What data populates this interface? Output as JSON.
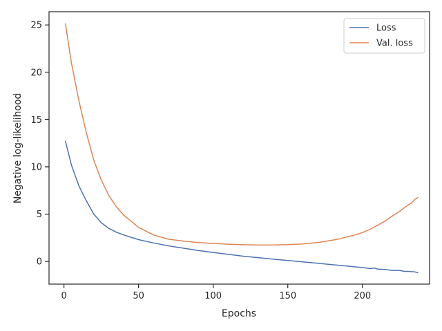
{
  "chart_data": {
    "type": "line",
    "xlabel": "Epochs",
    "ylabel": "Negative log-likelihood",
    "xlim": [
      -10,
      245
    ],
    "ylim": [
      -2.4,
      26.4
    ],
    "xticks": [
      0,
      50,
      100,
      150,
      200
    ],
    "yticks": [
      0,
      5,
      10,
      15,
      20,
      25
    ],
    "grid": false,
    "legend_position": "top-right",
    "series": [
      {
        "name": "Loss",
        "color": "#4c72b0",
        "x": [
          1,
          5,
          10,
          15,
          20,
          25,
          30,
          35,
          40,
          50,
          60,
          70,
          80,
          90,
          100,
          110,
          120,
          130,
          140,
          150,
          160,
          170,
          180,
          190,
          200,
          205,
          208,
          210,
          215,
          220,
          225,
          228,
          230,
          235,
          237
        ],
        "y": [
          12.7,
          10.2,
          8.0,
          6.4,
          5.0,
          4.1,
          3.5,
          3.1,
          2.8,
          2.3,
          1.95,
          1.65,
          1.4,
          1.15,
          0.95,
          0.75,
          0.55,
          0.4,
          0.25,
          0.1,
          -0.05,
          -0.2,
          -0.35,
          -0.5,
          -0.65,
          -0.75,
          -0.7,
          -0.8,
          -0.85,
          -0.95,
          -0.95,
          -1.05,
          -1.05,
          -1.1,
          -1.2
        ]
      },
      {
        "name": "Val. loss",
        "color": "#dd8452",
        "x": [
          1,
          5,
          10,
          15,
          20,
          25,
          30,
          35,
          40,
          50,
          60,
          70,
          80,
          90,
          100,
          110,
          120,
          130,
          140,
          150,
          160,
          170,
          180,
          185,
          190,
          195,
          200,
          205,
          210,
          215,
          220,
          225,
          230,
          233,
          235,
          237
        ],
        "y": [
          25.1,
          21.0,
          17.0,
          13.6,
          10.7,
          8.6,
          7.0,
          5.8,
          4.9,
          3.6,
          2.8,
          2.35,
          2.15,
          2.0,
          1.9,
          1.82,
          1.76,
          1.74,
          1.74,
          1.77,
          1.85,
          2.0,
          2.25,
          2.4,
          2.6,
          2.8,
          3.05,
          3.4,
          3.8,
          4.25,
          4.8,
          5.3,
          5.9,
          6.2,
          6.55,
          6.75
        ]
      }
    ]
  }
}
